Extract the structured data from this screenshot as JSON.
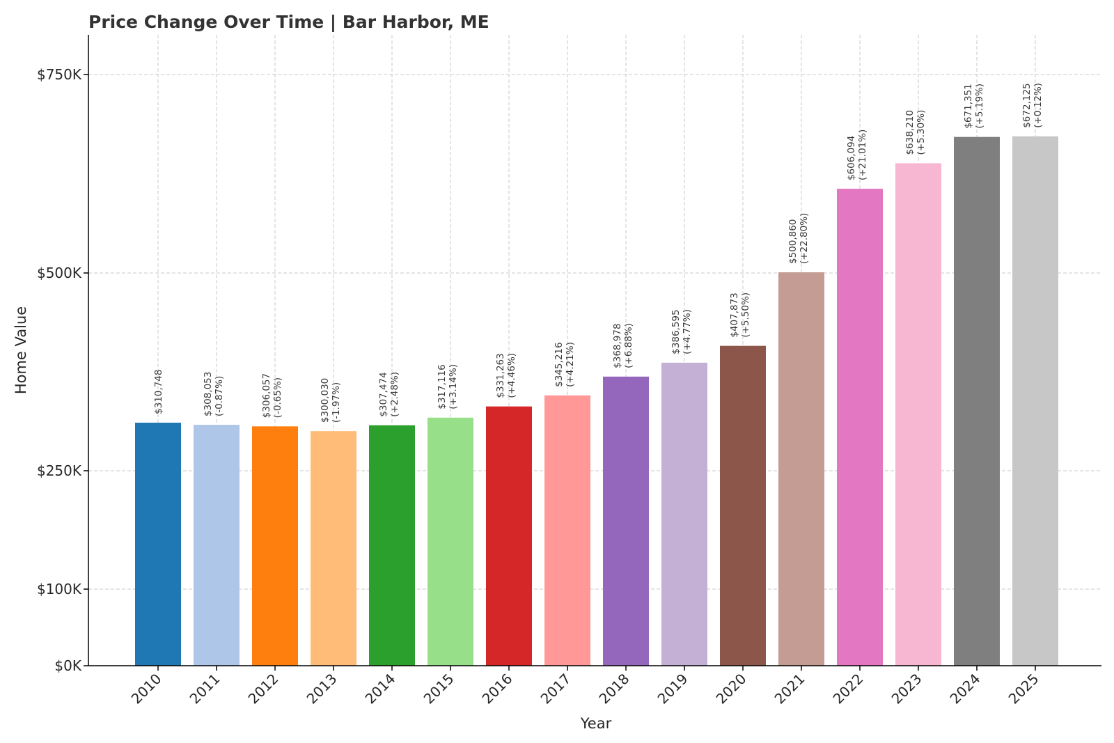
{
  "chart_data": {
    "type": "bar",
    "title": "Price Change Over Time | Bar Harbor, ME",
    "xlabel": "Year",
    "ylabel": "Home Value",
    "categories": [
      "2010",
      "2011",
      "2012",
      "2013",
      "2014",
      "2015",
      "2016",
      "2017",
      "2018",
      "2019",
      "2020",
      "2021",
      "2022",
      "2023",
      "2024",
      "2025"
    ],
    "values": [
      310748,
      308053,
      306057,
      300030,
      307474,
      317116,
      331263,
      345216,
      368978,
      386595,
      407873,
      500860,
      606094,
      638210,
      671351,
      672125
    ],
    "value_labels": [
      "$310,748",
      "$308,053",
      "$306,057",
      "$300,030",
      "$307,474",
      "$317,116",
      "$331,263",
      "$345,216",
      "$368,978",
      "$386,595",
      "$407,873",
      "$500,860",
      "$606,094",
      "$638,210",
      "$671,351",
      "$672,125"
    ],
    "change_labels": [
      "",
      "(-0.87%)",
      "(-0.65%)",
      "(-1.97%)",
      "(+2.48%)",
      "(+3.14%)",
      "(+4.46%)",
      "(+4.21%)",
      "(+6.88%)",
      "(+4.77%)",
      "(+5.50%)",
      "(+22.80%)",
      "(+21.01%)",
      "(+5.30%)",
      "(+5.19%)",
      "(+0.12%)"
    ],
    "colors": [
      "#1f77b4",
      "#aec7e8",
      "#ff7f0e",
      "#ffbb78",
      "#2ca02c",
      "#98df8a",
      "#d62728",
      "#ff9896",
      "#9467bd",
      "#c5b0d5",
      "#8c564b",
      "#c49c94",
      "#e377c2",
      "#f7b6d2",
      "#7f7f7f",
      "#c7c7c7"
    ],
    "yticks": [
      0,
      100000,
      250000,
      500000,
      750000
    ],
    "ytick_labels": [
      "$0K",
      "$100K",
      "$250K",
      "$500K",
      "$750K"
    ],
    "ylim": [
      0,
      800000
    ],
    "grid": true
  }
}
